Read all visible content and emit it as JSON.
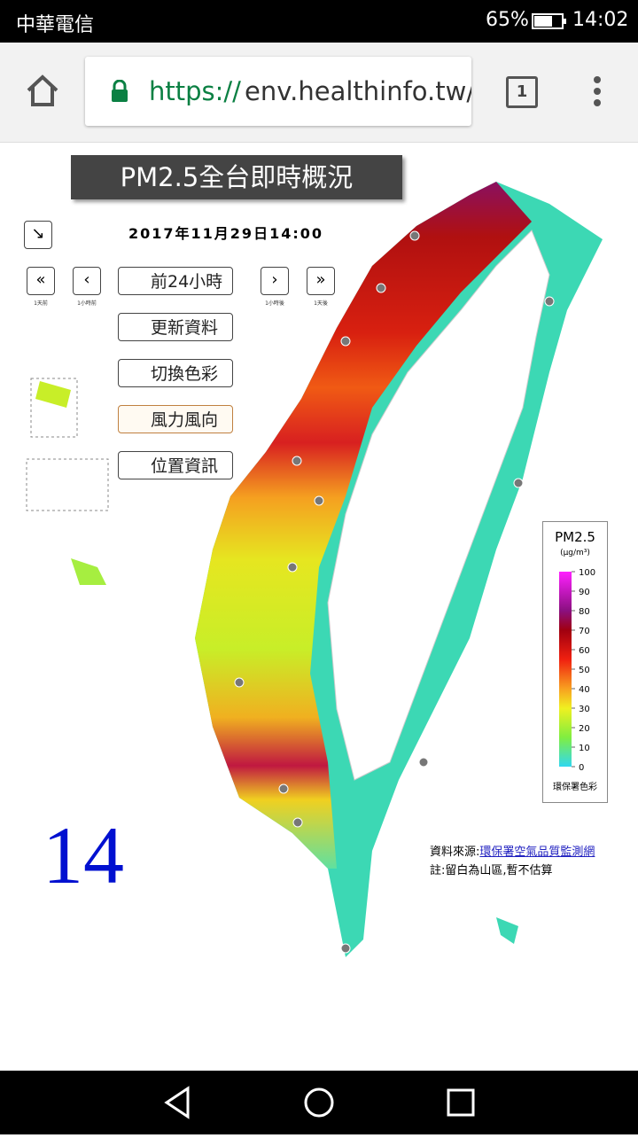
{
  "status_bar": {
    "carrier": "中華電信",
    "battery": "65%",
    "time": "14:02"
  },
  "browser": {
    "url_scheme": "https://",
    "url_host": "env.healthinfo.tw/",
    "tab_count": "1"
  },
  "header": {
    "title": "PM2.5全台即時概況",
    "timestamp": "2017年11月29日14:00"
  },
  "controls": {
    "nav_labels": [
      "1天前",
      "1小時前",
      "1小時後",
      "1天後"
    ],
    "buttons": [
      "前24小時",
      "更新資料",
      "切換色彩",
      "風力風向",
      "位置資訊"
    ]
  },
  "legend": {
    "title": "PM2.5",
    "unit": "(μg/m³)",
    "ticks": [
      100,
      90,
      80,
      70,
      60,
      50,
      40,
      30,
      20,
      10,
      0
    ],
    "footer": "環保署色彩"
  },
  "notes": {
    "source_label": "資料來源:",
    "source_link": "環保署空氣品質監測網",
    "note": "註:留白為山區,暫不估算"
  },
  "hour": "14"
}
